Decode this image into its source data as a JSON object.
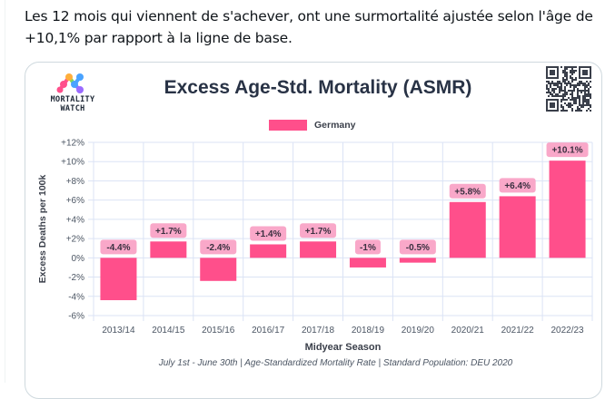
{
  "tweet": {
    "text": "Les 12 mois qui viennent de s'achever, ont une surmortalité ajustée selon l'âge de +10,1% par rapport à la ligne de base."
  },
  "card": {
    "logo": {
      "line1": "MORTALITY",
      "line2": "WATCH"
    },
    "qr_icon": "qr-code-icon"
  },
  "colors": {
    "bar": "#ff4f8b",
    "label_bg": "#f9a8c9",
    "grid": "#dbe3f5",
    "title": "#283245"
  },
  "chart_data": {
    "type": "bar",
    "title": "Excess Age-Std. Mortality (ASMR)",
    "legend": {
      "entries": [
        "Germany"
      ],
      "position": "top-center"
    },
    "xlabel": "Midyear Season",
    "ylabel": "Excess Deaths per 100k",
    "caption": "July 1st - June 30th | Age-Standardized Mortality Rate | Standard Population: DEU 2020",
    "categories": [
      "2013/14",
      "2014/15",
      "2015/16",
      "2016/17",
      "2017/18",
      "2018/19",
      "2019/20",
      "2020/21",
      "2021/22",
      "2022/23"
    ],
    "series": [
      {
        "name": "Germany",
        "values": [
          -4.4,
          1.7,
          -2.4,
          1.4,
          1.7,
          -1.0,
          -0.5,
          5.8,
          6.4,
          10.1
        ],
        "labels": [
          "-4.4%",
          "+1.7%",
          "-2.4%",
          "+1.4%",
          "+1.7%",
          "-1%",
          "-0.5%",
          "+5.8%",
          "+6.4%",
          "+10.1%"
        ]
      }
    ],
    "ylim": [
      -6,
      12
    ],
    "yticks": [
      12,
      10,
      8,
      6,
      4,
      2,
      0,
      -2,
      -4,
      -6
    ],
    "ytick_labels": [
      "+12%",
      "+10%",
      "+8%",
      "+6%",
      "+4%",
      "+2%",
      "0%",
      "-2%",
      "-4%",
      "-6%"
    ],
    "grid": true
  }
}
